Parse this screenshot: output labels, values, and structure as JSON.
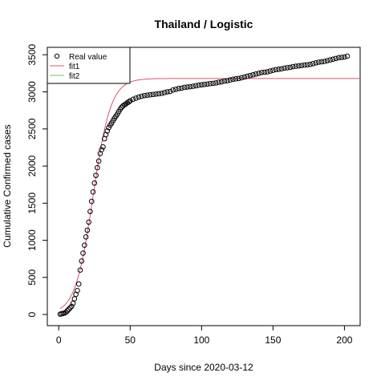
{
  "chart_data": {
    "type": "scatter",
    "title": "Thailand / Logistic",
    "xlabel": "Days since 2020-03-12",
    "ylabel": "Cumulative Confirmed cases",
    "xlim": [
      -8,
      211
    ],
    "ylim": [
      -150,
      3600
    ],
    "x_ticks": [
      0,
      50,
      100,
      150,
      200
    ],
    "y_ticks": [
      0,
      500,
      1000,
      1500,
      2000,
      2500,
      3000,
      3500
    ],
    "grid": false,
    "legend_position": "top-left",
    "colors": {
      "points": "#000000",
      "fit1": "#DF536B",
      "fit2": "#61D04F"
    },
    "series": [
      {
        "name": "Real value",
        "style": "open-circle",
        "x": [
          1,
          2,
          3,
          4,
          5,
          6,
          7,
          8,
          9,
          10,
          11,
          12,
          13,
          14,
          15,
          16,
          17,
          18,
          19,
          20,
          21,
          22,
          23,
          24,
          25,
          26,
          27,
          28,
          29,
          30,
          31,
          32,
          33,
          34,
          35,
          36,
          37,
          38,
          39,
          40,
          41,
          42,
          43,
          44,
          45,
          46,
          47,
          48,
          49,
          50,
          52,
          54,
          56,
          58,
          60,
          62,
          64,
          66,
          68,
          70,
          72,
          74,
          76,
          78,
          80,
          82,
          84,
          86,
          88,
          90,
          92,
          94,
          96,
          98,
          100,
          102,
          104,
          106,
          108,
          110,
          112,
          114,
          116,
          118,
          120,
          122,
          124,
          126,
          128,
          130,
          132,
          134,
          136,
          138,
          140,
          142,
          144,
          146,
          148,
          150,
          152,
          154,
          156,
          158,
          160,
          162,
          164,
          166,
          168,
          170,
          172,
          174,
          176,
          178,
          180,
          182,
          184,
          186,
          188,
          190,
          192,
          194,
          196,
          198,
          200,
          202
        ],
        "y": [
          5,
          10,
          14,
          20,
          30,
          50,
          70,
          90,
          110,
          150,
          212,
          272,
          322,
          411,
          599,
          721,
          827,
          934,
          1045,
          1136,
          1245,
          1388,
          1524,
          1651,
          1771,
          1875,
          1978,
          2067,
          2169,
          2220,
          2258,
          2369,
          2423,
          2473,
          2518,
          2551,
          2579,
          2613,
          2643,
          2672,
          2700,
          2733,
          2765,
          2792,
          2811,
          2826,
          2838,
          2854,
          2865,
          2879,
          2900,
          2915,
          2930,
          2940,
          2950,
          2955,
          2960,
          2965,
          2970,
          2975,
          2980,
          2990,
          3000,
          3005,
          3025,
          3035,
          3045,
          3050,
          3060,
          3065,
          3070,
          3075,
          3082,
          3090,
          3095,
          3100,
          3105,
          3110,
          3115,
          3120,
          3130,
          3135,
          3145,
          3150,
          3160,
          3170,
          3175,
          3180,
          3190,
          3200,
          3210,
          3220,
          3230,
          3240,
          3250,
          3260,
          3265,
          3270,
          3280,
          3290,
          3300,
          3305,
          3310,
          3320,
          3325,
          3330,
          3340,
          3345,
          3350,
          3355,
          3360,
          3365,
          3370,
          3380,
          3390,
          3400,
          3405,
          3410,
          3420,
          3430,
          3440,
          3450,
          3460,
          3465,
          3470,
          3480
        ]
      },
      {
        "name": "fit1",
        "style": "line",
        "model": "logistic",
        "params": {
          "K": 3180,
          "r": 0.16,
          "x0": 24
        },
        "x_range": [
          1,
          211
        ]
      },
      {
        "name": "fit2",
        "style": "line",
        "model": "none"
      }
    ]
  }
}
